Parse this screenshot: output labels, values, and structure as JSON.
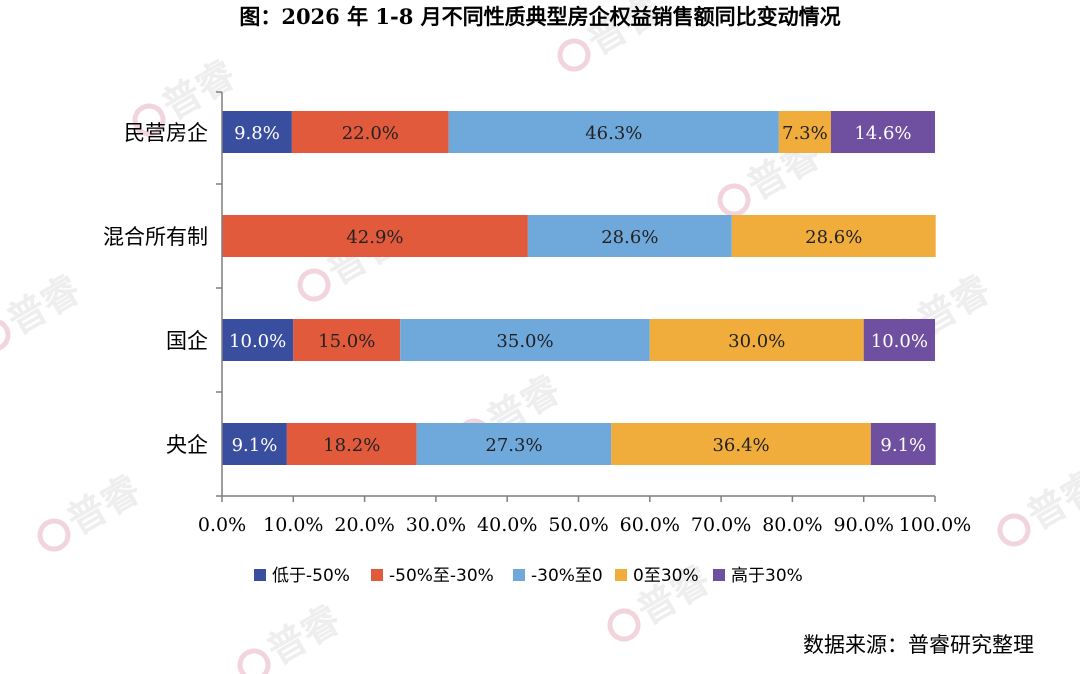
{
  "chart_data": {
    "type": "bar",
    "orientation": "horizontal",
    "stacked": true,
    "title": "图：2026 年 1-8 月不同性质典型房企权益销售额同比变动情况",
    "categories": [
      "民营房企",
      "混合所有制",
      "国企",
      "央企"
    ],
    "series": [
      {
        "name": "低于-50%",
        "color": "#3a4ea0",
        "values": [
          9.8,
          0,
          10.0,
          9.1
        ],
        "labels": [
          "9.8%",
          "",
          "10.0%",
          "9.1%"
        ]
      },
      {
        "name": "-50%至-30%",
        "color": "#e25a3c",
        "values": [
          22.0,
          42.9,
          15.0,
          18.2
        ],
        "labels": [
          "22.0%",
          "42.9%",
          "15.0%",
          "18.2%"
        ]
      },
      {
        "name": "-30%至0",
        "color": "#6fa9dc",
        "values": [
          46.3,
          28.6,
          35.0,
          27.3
        ],
        "labels": [
          "46.3%",
          "28.6%",
          "35.0%",
          "27.3%"
        ]
      },
      {
        "name": "0至30%",
        "color": "#f0ad3c",
        "values": [
          7.3,
          28.6,
          30.0,
          36.4
        ],
        "labels": [
          "7.3%",
          "28.6%",
          "30.0%",
          "36.4%"
        ]
      },
      {
        "name": "高于30%",
        "color": "#6e4fa0",
        "values": [
          14.6,
          0,
          10.0,
          9.1
        ],
        "labels": [
          "14.6%",
          "",
          "10.0%",
          "9.1%"
        ]
      }
    ],
    "xlim": [
      0,
      100
    ],
    "xticks": [
      "0.0%",
      "10.0%",
      "20.0%",
      "30.0%",
      "40.0%",
      "50.0%",
      "60.0%",
      "70.0%",
      "80.0%",
      "90.0%",
      "100.0%"
    ],
    "legend_position": "bottom",
    "grid": false
  },
  "source_text": "数据来源：普睿研究整理",
  "watermark_text": "普睿"
}
